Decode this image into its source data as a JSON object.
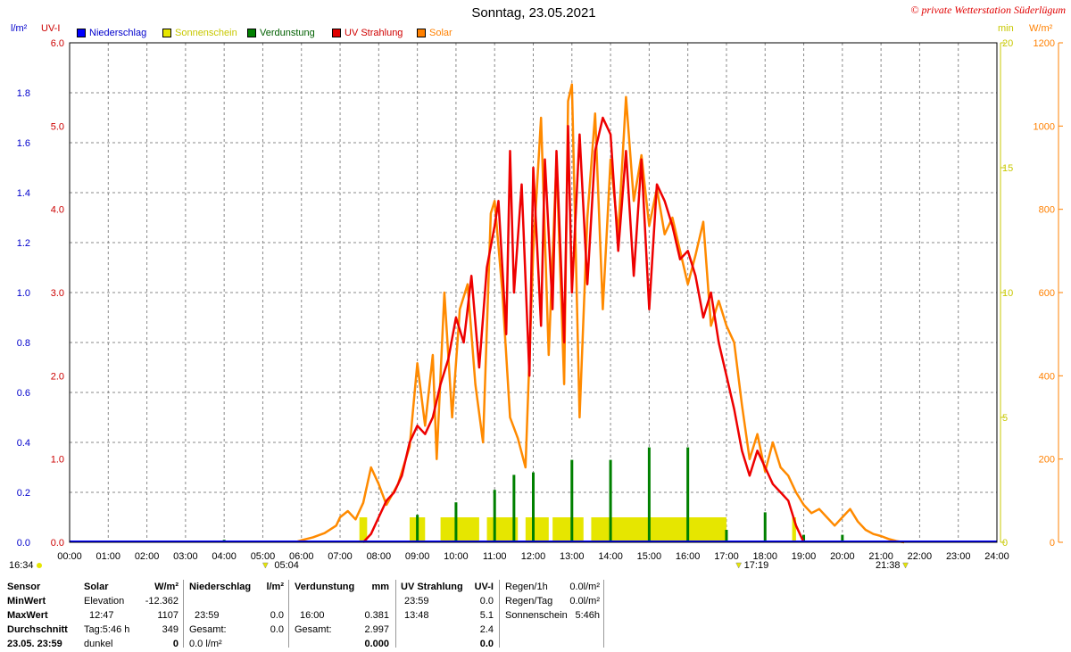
{
  "title": "Sonntag, 23.05.2021",
  "copyright": "© private Wetterstation Süderlügum",
  "units": {
    "left1": "l/m²",
    "left2": "UV-I",
    "right1": "min",
    "right2": "W/m²"
  },
  "legend": [
    {
      "label": "Niederschlag",
      "color": "#0000ff",
      "text_color": "#0000cc"
    },
    {
      "label": "Sonnenschein",
      "color": "#e6e600",
      "text_color": "#c8c800"
    },
    {
      "label": "Verdunstung",
      "color": "#008000",
      "text_color": "#006000"
    },
    {
      "label": "UV Strahlung",
      "color": "#e00000",
      "text_color": "#d00000"
    },
    {
      "label": "Solar",
      "color": "#ff8000",
      "text_color": "#ff8000"
    }
  ],
  "colors": {
    "rain": "#0000ff",
    "sunshine": "#e6e600",
    "evap": "#008000",
    "uv": "#ee0000",
    "solar": "#ff8a00",
    "grid": "#888888",
    "axis_blue": "#0000cc",
    "axis_red": "#cc0000",
    "axis_yellow": "#c8c800",
    "axis_orange": "#ff8000"
  },
  "chart_data": {
    "type": "line",
    "x_ticks": [
      "00:00",
      "01:00",
      "02:00",
      "03:00",
      "04:00",
      "05:00",
      "06:00",
      "07:00",
      "08:00",
      "09:00",
      "10:00",
      "11:00",
      "12:00",
      "13:00",
      "14:00",
      "15:00",
      "16:00",
      "17:00",
      "18:00",
      "19:00",
      "20:00",
      "21:00",
      "22:00",
      "23:00",
      "24:00"
    ],
    "axes": {
      "rain": {
        "ylim": [
          0,
          2.0
        ],
        "ticks": [
          "0.0",
          "0.2",
          "0.4",
          "0.6",
          "0.8",
          "1.0",
          "1.2",
          "1.4",
          "1.6",
          "1.8"
        ]
      },
      "uv": {
        "ylim": [
          0,
          6.0
        ],
        "ticks": [
          "0.0",
          "1.0",
          "2.0",
          "3.0",
          "4.0",
          "5.0",
          "6.0"
        ]
      },
      "sunshine": {
        "ylim": [
          0,
          20
        ],
        "ticks": [
          "0",
          "5",
          "10",
          "15",
          "20"
        ]
      },
      "solar": {
        "ylim": [
          0,
          1200
        ],
        "ticks": [
          "0",
          "200",
          "400",
          "600",
          "800",
          "1000",
          "1200"
        ]
      }
    },
    "sun_events": {
      "sunrise": "05:04",
      "sunset": "21:38",
      "noon": "17:19",
      "day_left": "16:34"
    },
    "series": [
      {
        "name": "Solar",
        "axis": "solar",
        "points": [
          [
            5.9,
            2
          ],
          [
            6.0,
            5
          ],
          [
            6.3,
            12
          ],
          [
            6.6,
            22
          ],
          [
            6.9,
            40
          ],
          [
            7.0,
            60
          ],
          [
            7.2,
            75
          ],
          [
            7.4,
            55
          ],
          [
            7.6,
            95
          ],
          [
            7.8,
            180
          ],
          [
            8.0,
            140
          ],
          [
            8.2,
            90
          ],
          [
            8.5,
            140
          ],
          [
            8.8,
            230
          ],
          [
            9.0,
            430
          ],
          [
            9.2,
            280
          ],
          [
            9.4,
            450
          ],
          [
            9.5,
            200
          ],
          [
            9.7,
            600
          ],
          [
            9.9,
            300
          ],
          [
            10.1,
            560
          ],
          [
            10.3,
            620
          ],
          [
            10.5,
            380
          ],
          [
            10.7,
            240
          ],
          [
            10.9,
            790
          ],
          [
            11.0,
            820
          ],
          [
            11.2,
            600
          ],
          [
            11.4,
            300
          ],
          [
            11.6,
            250
          ],
          [
            11.8,
            180
          ],
          [
            12.0,
            700
          ],
          [
            12.2,
            1020
          ],
          [
            12.4,
            450
          ],
          [
            12.6,
            920
          ],
          [
            12.8,
            380
          ],
          [
            12.9,
            1060
          ],
          [
            13.0,
            1100
          ],
          [
            13.2,
            300
          ],
          [
            13.4,
            780
          ],
          [
            13.6,
            1030
          ],
          [
            13.8,
            560
          ],
          [
            14.0,
            920
          ],
          [
            14.2,
            740
          ],
          [
            14.4,
            1070
          ],
          [
            14.6,
            820
          ],
          [
            14.8,
            930
          ],
          [
            15.0,
            760
          ],
          [
            15.2,
            850
          ],
          [
            15.4,
            740
          ],
          [
            15.6,
            780
          ],
          [
            15.8,
            700
          ],
          [
            16.0,
            620
          ],
          [
            16.2,
            690
          ],
          [
            16.4,
            770
          ],
          [
            16.6,
            520
          ],
          [
            16.8,
            580
          ],
          [
            17.0,
            520
          ],
          [
            17.2,
            480
          ],
          [
            17.4,
            330
          ],
          [
            17.6,
            200
          ],
          [
            17.8,
            260
          ],
          [
            18.0,
            170
          ],
          [
            18.2,
            240
          ],
          [
            18.4,
            180
          ],
          [
            18.6,
            160
          ],
          [
            18.8,
            120
          ],
          [
            19.0,
            90
          ],
          [
            19.2,
            70
          ],
          [
            19.4,
            80
          ],
          [
            19.6,
            60
          ],
          [
            19.8,
            40
          ],
          [
            20.0,
            60
          ],
          [
            20.2,
            80
          ],
          [
            20.4,
            50
          ],
          [
            20.6,
            30
          ],
          [
            20.8,
            20
          ],
          [
            21.0,
            15
          ],
          [
            21.2,
            8
          ],
          [
            21.4,
            3
          ],
          [
            21.6,
            0
          ]
        ]
      },
      {
        "name": "UV Strahlung",
        "axis": "uv",
        "points": [
          [
            7.6,
            0.0
          ],
          [
            7.8,
            0.1
          ],
          [
            8.0,
            0.3
          ],
          [
            8.2,
            0.5
          ],
          [
            8.4,
            0.6
          ],
          [
            8.6,
            0.8
          ],
          [
            8.8,
            1.2
          ],
          [
            9.0,
            1.4
          ],
          [
            9.2,
            1.3
          ],
          [
            9.4,
            1.5
          ],
          [
            9.6,
            1.9
          ],
          [
            9.8,
            2.2
          ],
          [
            10.0,
            2.7
          ],
          [
            10.2,
            2.4
          ],
          [
            10.4,
            3.2
          ],
          [
            10.6,
            2.1
          ],
          [
            10.8,
            3.3
          ],
          [
            11.0,
            3.8
          ],
          [
            11.1,
            4.1
          ],
          [
            11.3,
            2.5
          ],
          [
            11.4,
            4.7
          ],
          [
            11.5,
            3.0
          ],
          [
            11.7,
            4.3
          ],
          [
            11.9,
            2.0
          ],
          [
            12.0,
            4.5
          ],
          [
            12.2,
            2.6
          ],
          [
            12.3,
            4.6
          ],
          [
            12.5,
            2.8
          ],
          [
            12.6,
            4.7
          ],
          [
            12.8,
            2.4
          ],
          [
            12.9,
            5.0
          ],
          [
            13.0,
            3.0
          ],
          [
            13.2,
            4.9
          ],
          [
            13.4,
            3.1
          ],
          [
            13.6,
            4.7
          ],
          [
            13.8,
            5.1
          ],
          [
            14.0,
            4.9
          ],
          [
            14.2,
            3.5
          ],
          [
            14.4,
            4.7
          ],
          [
            14.6,
            3.2
          ],
          [
            14.8,
            4.6
          ],
          [
            15.0,
            2.8
          ],
          [
            15.2,
            4.3
          ],
          [
            15.4,
            4.1
          ],
          [
            15.6,
            3.8
          ],
          [
            15.8,
            3.4
          ],
          [
            16.0,
            3.5
          ],
          [
            16.2,
            3.2
          ],
          [
            16.4,
            2.7
          ],
          [
            16.6,
            3.0
          ],
          [
            16.8,
            2.4
          ],
          [
            17.0,
            2.0
          ],
          [
            17.2,
            1.6
          ],
          [
            17.4,
            1.1
          ],
          [
            17.6,
            0.8
          ],
          [
            17.8,
            1.1
          ],
          [
            18.0,
            0.9
          ],
          [
            18.2,
            0.7
          ],
          [
            18.4,
            0.6
          ],
          [
            18.6,
            0.5
          ],
          [
            18.8,
            0.2
          ],
          [
            19.0,
            0.0
          ]
        ]
      },
      {
        "name": "Verdunstung",
        "axis": "rain",
        "bars": [
          [
            4.0,
            0.01
          ],
          [
            9.0,
            0.11
          ],
          [
            10.0,
            0.16
          ],
          [
            11.0,
            0.21
          ],
          [
            11.5,
            0.27
          ],
          [
            12.0,
            0.28
          ],
          [
            13.0,
            0.33
          ],
          [
            14.0,
            0.33
          ],
          [
            15.0,
            0.38
          ],
          [
            16.0,
            0.38
          ],
          [
            17.0,
            0.05
          ],
          [
            18.0,
            0.12
          ],
          [
            19.0,
            0.03
          ],
          [
            20.0,
            0.03
          ]
        ]
      },
      {
        "name": "Sonnenschein",
        "axis": "sunshine",
        "blocks": [
          [
            7.5,
            7.7,
            1.0
          ],
          [
            8.8,
            9.2,
            1.0
          ],
          [
            9.6,
            10.6,
            1.0
          ],
          [
            10.8,
            11.6,
            1.0
          ],
          [
            11.8,
            12.4,
            1.0
          ],
          [
            12.5,
            13.3,
            1.0
          ],
          [
            13.5,
            17.0,
            1.0
          ],
          [
            18.7,
            18.8,
            1.0
          ]
        ]
      }
    ]
  },
  "stats": {
    "labels": {
      "sensor": "Sensor",
      "min": "MinWert",
      "max": "MaxWert",
      "avg": "Durchschnitt",
      "stamp": "23.05. 23:59"
    },
    "solar": {
      "header": "Solar",
      "unit": "W/m²",
      "r1a": "Elevation",
      "r1b": "-12.362",
      "r2a": "12:47",
      "r2b": "1107",
      "r3a": "Tag:5:46 h",
      "r3b": "349",
      "r4a": "dunkel",
      "r4b": "0"
    },
    "rain": {
      "header": "Niederschlag",
      "unit": "l/m²",
      "r2a": "23:59",
      "r2b": "0.0",
      "r3a": "Gesamt:",
      "r3b": "0.0",
      "r4a": "0.0 l/m²",
      "r4b": ""
    },
    "evap": {
      "header": "Verdunstung",
      "unit": "mm",
      "r2a": "16:00",
      "r2b": "0.381",
      "r3a": "Gesamt:",
      "r3b": "2.997",
      "r4b": "0.000"
    },
    "uv": {
      "header": "UV Strahlung",
      "unit": "UV-I",
      "r1a": "23:59",
      "r1b": "0.0",
      "r2a": "13:48",
      "r2b": "5.1",
      "r3b": "2.4",
      "r4b": "0.0"
    },
    "extra": {
      "r0a": "Regen/1h",
      "r0b": "0.0l/m²",
      "r1a": "Regen/Tag",
      "r1b": "0.0l/m²",
      "r2a": "Sonnenschein",
      "r2b": "5:46h"
    }
  }
}
